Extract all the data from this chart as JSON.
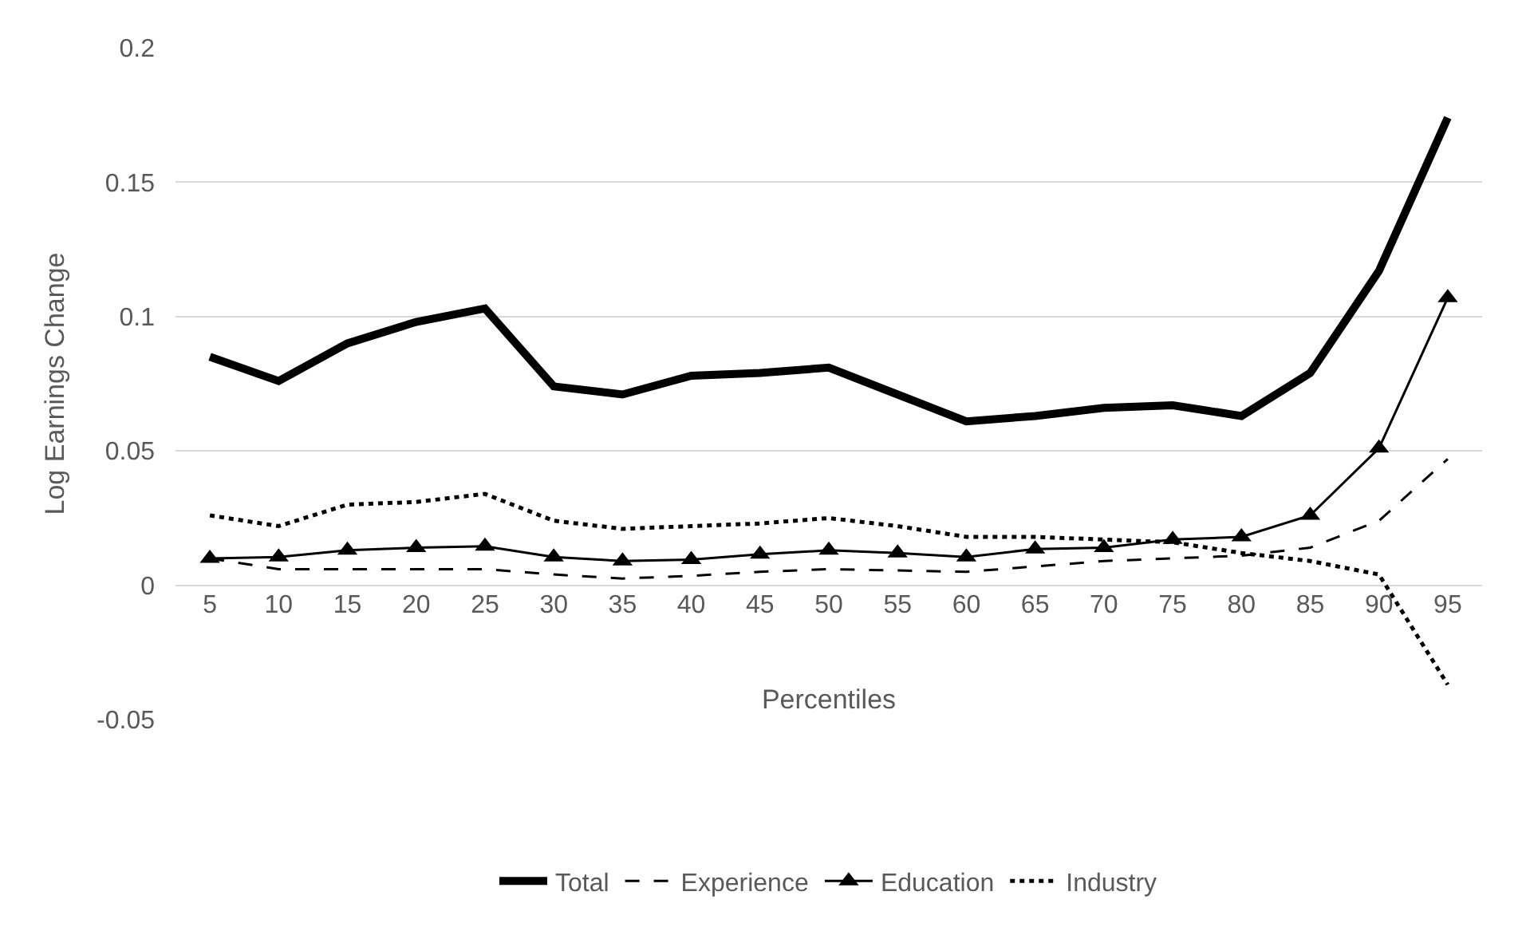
{
  "chart_data": {
    "type": "line",
    "xlabel": "Percentiles",
    "ylabel": "Log Earnings Change",
    "categories": [
      "5",
      "10",
      "15",
      "20",
      "25",
      "30",
      "35",
      "40",
      "45",
      "50",
      "55",
      "60",
      "65",
      "70",
      "75",
      "80",
      "85",
      "90",
      "95"
    ],
    "series": [
      {
        "name": "Total",
        "color": "#000000",
        "line_style": "solid",
        "marker": "none",
        "values": [
          0.085,
          0.076,
          0.09,
          0.098,
          0.103,
          0.074,
          0.071,
          0.078,
          0.079,
          0.081,
          0.071,
          0.061,
          0.063,
          0.066,
          0.067,
          0.063,
          0.079,
          0.117,
          0.174
        ]
      },
      {
        "name": "Experience",
        "color": "#000000",
        "line_style": "dashed",
        "marker": "none",
        "values": [
          0.01,
          0.006,
          0.006,
          0.006,
          0.006,
          0.004,
          0.0025,
          0.0035,
          0.005,
          0.006,
          0.0055,
          0.005,
          0.007,
          0.009,
          0.01,
          0.011,
          0.014,
          0.024,
          0.047
        ]
      },
      {
        "name": "Education",
        "color": "#000000",
        "line_style": "solid",
        "marker": "triangle",
        "values": [
          0.01,
          0.0105,
          0.013,
          0.014,
          0.0145,
          0.0105,
          0.009,
          0.0095,
          0.0115,
          0.013,
          0.012,
          0.0105,
          0.0135,
          0.014,
          0.017,
          0.018,
          0.026,
          0.051,
          0.107
        ]
      },
      {
        "name": "Industry",
        "color": "#000000",
        "line_style": "dotted",
        "marker": "none",
        "values": [
          0.026,
          0.022,
          0.03,
          0.031,
          0.034,
          0.024,
          0.021,
          0.022,
          0.023,
          0.025,
          0.022,
          0.018,
          0.018,
          0.017,
          0.016,
          0.012,
          0.009,
          0.004,
          -0.037
        ]
      }
    ],
    "ylim": [
      -0.05,
      0.2
    ],
    "yticks": [
      -0.05,
      0,
      0.05,
      0.1,
      0.15,
      0.2
    ],
    "grid": "y",
    "legend": "bottom"
  }
}
